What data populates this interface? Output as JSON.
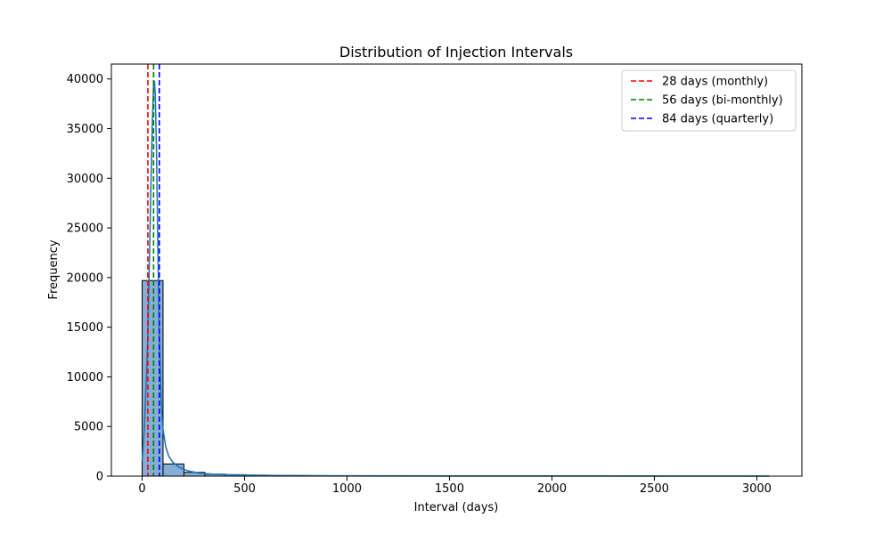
{
  "chart_data": {
    "type": "bar",
    "title": "Distribution of Injection Intervals",
    "xlabel": "Interval (days)",
    "ylabel": "Frequency",
    "xlim": [
      -150,
      3220
    ],
    "ylim": [
      0,
      41500
    ],
    "xticks": [
      0,
      500,
      1000,
      1500,
      2000,
      2500,
      3000
    ],
    "yticks": [
      0,
      5000,
      10000,
      15000,
      20000,
      25000,
      30000,
      35000,
      40000
    ],
    "grid": false,
    "legend_position": "top-right",
    "histogram": {
      "bin_width": 102.1,
      "bin_start": 0,
      "bar_color": "#6f9fd0",
      "edge_color": "#000000",
      "counts": [
        19700,
        1230,
        380,
        200,
        150,
        100,
        80,
        60,
        50,
        40,
        35,
        30,
        25,
        22,
        20,
        18,
        16,
        14,
        12,
        10,
        9,
        8,
        7,
        6,
        5,
        4,
        4,
        3,
        3,
        2
      ]
    },
    "kde": {
      "name": "",
      "color": "#1f77b4",
      "x": [
        0,
        10,
        20,
        28,
        35,
        42,
        50,
        56,
        60,
        64,
        70,
        78,
        84,
        92,
        100,
        115,
        130,
        150,
        180,
        220,
        280,
        350,
        450,
        600,
        800,
        1000,
        1500,
        2000,
        2500,
        3060
      ],
      "y": [
        1500,
        4500,
        9500,
        14000,
        21000,
        28500,
        35500,
        39500,
        39800,
        38500,
        33000,
        22000,
        14000,
        8000,
        5000,
        3000,
        2000,
        1400,
        900,
        550,
        300,
        200,
        120,
        70,
        40,
        30,
        20,
        15,
        10,
        5
      ]
    },
    "reference_lines": [
      {
        "x": 28,
        "label": "28 days (monthly)",
        "color": "#ff0000"
      },
      {
        "x": 56,
        "label": "56 days (bi-monthly)",
        "color": "#008000"
      },
      {
        "x": 84,
        "label": "84 days (quarterly)",
        "color": "#0000ff"
      }
    ]
  }
}
